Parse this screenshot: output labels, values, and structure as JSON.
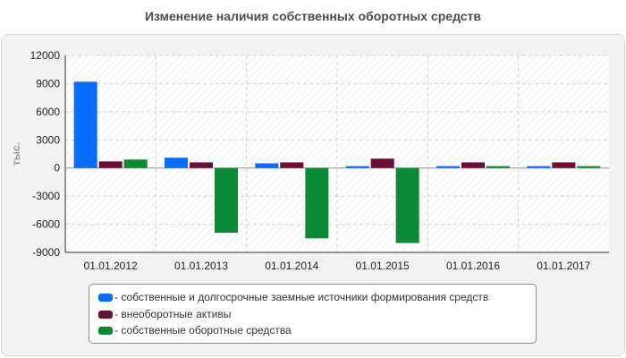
{
  "chart_data": {
    "type": "bar",
    "title": "Изменение наличия собственных оборотных средств",
    "ylabel": "тыс.",
    "xlabel": "",
    "categories": [
      "01.01.2012",
      "01.01.2013",
      "01.01.2014",
      "01.01.2015",
      "01.01.2016",
      "01.01.2017"
    ],
    "ylim": [
      -9000,
      12000
    ],
    "yticks": [
      12000,
      9000,
      6000,
      3000,
      0,
      -3000,
      -6000,
      -9000
    ],
    "grid": true,
    "legend_position": "bottom",
    "series": [
      {
        "name": "- собственные и долгосрочные заемные источники формирования средств",
        "color": "#0a6cff",
        "values": [
          9200,
          1100,
          500,
          200,
          200,
          200
        ]
      },
      {
        "name": "- внеоборотные активы",
        "color": "#6b0d35",
        "values": [
          700,
          600,
          600,
          1000,
          600,
          600
        ]
      },
      {
        "name": "- собственные оборотные средства",
        "color": "#0a8a34",
        "values": [
          900,
          -6900,
          -7500,
          -8000,
          200,
          200
        ]
      }
    ]
  }
}
